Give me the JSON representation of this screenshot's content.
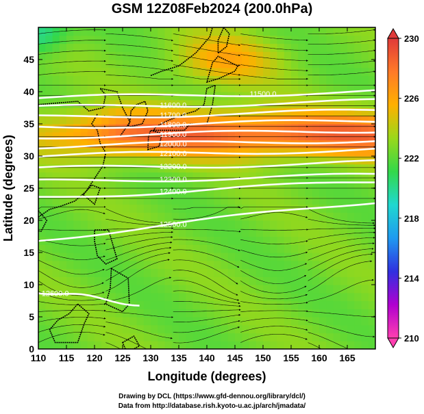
{
  "title": "GSM 12Z08Feb2024 (200.0hPa)",
  "xlabel": "Longitude (degrees)",
  "ylabel": "Latitude (degrees)",
  "credit_line1": "Drawing by DCL (https://www.gfd-dennou.org/library/dcl/)",
  "credit_line2": "Data from http://database.rish.kyoto-u.ac.jp/arch/jmadata/",
  "colorbar": {
    "ticks": [
      "230",
      "226",
      "222",
      "218",
      "214",
      "210"
    ],
    "stops": [
      "#ff3fb0",
      "#b000d0",
      "#3030e0",
      "#1f9af0",
      "#20d8d0",
      "#33d84a",
      "#9ad81a",
      "#ffb000",
      "#ff7a28",
      "#e03a3a"
    ],
    "min": 210,
    "max": 230
  },
  "chart_data": {
    "type": "heatmap",
    "title": "GSM 12Z08Feb2024 (200.0hPa)",
    "xlabel": "Longitude (degrees)",
    "ylabel": "Latitude (degrees)",
    "xlim": [
      110,
      170
    ],
    "ylim": [
      0,
      50
    ],
    "x_ticks": [
      110,
      115,
      120,
      125,
      130,
      135,
      140,
      145,
      150,
      155,
      160,
      165
    ],
    "y_ticks": [
      0,
      5,
      10,
      15,
      20,
      25,
      30,
      35,
      40,
      45
    ],
    "color_variable_range": [
      210,
      230
    ],
    "temperature_regions": [
      {
        "lon": [
          110,
          170
        ],
        "lat": [
          0,
          30
        ],
        "value": 222
      },
      {
        "lon": [
          128,
          170
        ],
        "lat": [
          30,
          38
        ],
        "value": 229
      },
      {
        "lon": [
          135,
          155
        ],
        "lat": [
          40,
          50
        ],
        "value": 226
      },
      {
        "lon": [
          110,
          118
        ],
        "lat": [
          45,
          50
        ],
        "value": 219
      }
    ],
    "contours": [
      {
        "label": "11500.0",
        "lat_at_lon": [
          [
            110,
            39.0
          ],
          [
            170,
            40.0
          ]
        ]
      },
      {
        "label": "11600.0",
        "lat_at_lon": [
          [
            110,
            37.5
          ],
          [
            170,
            38.5
          ]
        ]
      },
      {
        "label": "11700.0",
        "lat_at_lon": [
          [
            110,
            36.0
          ],
          [
            170,
            37.0
          ]
        ]
      },
      {
        "label": "11800.0",
        "lat_at_lon": [
          [
            110,
            34.5
          ],
          [
            170,
            35.5
          ]
        ]
      },
      {
        "label": "11900.0",
        "lat_at_lon": [
          [
            110,
            33.0
          ],
          [
            170,
            34.0
          ]
        ]
      },
      {
        "label": "12000.0",
        "lat_at_lon": [
          [
            110,
            31.5
          ],
          [
            170,
            32.5
          ]
        ]
      },
      {
        "label": "12100.0",
        "lat_at_lon": [
          [
            110,
            30.0
          ],
          [
            170,
            31.0
          ]
        ]
      },
      {
        "label": "12200.0",
        "lat_at_lon": [
          [
            110,
            28.0
          ],
          [
            170,
            29.0
          ]
        ]
      },
      {
        "label": "12300.0",
        "lat_at_lon": [
          [
            110,
            26.0
          ],
          [
            170,
            27.0
          ]
        ]
      },
      {
        "label": "12400.0",
        "lat_at_lon": [
          [
            110,
            23.5
          ],
          [
            170,
            26.0
          ]
        ]
      },
      {
        "label": "12500.0",
        "lat_at_lon": [
          [
            110,
            17.0
          ],
          [
            170,
            23.0
          ]
        ]
      },
      {
        "label": "12600.0",
        "lat_at_lon": [
          [
            110,
            9.0
          ],
          [
            128,
            7.0
          ]
        ]
      }
    ]
  }
}
